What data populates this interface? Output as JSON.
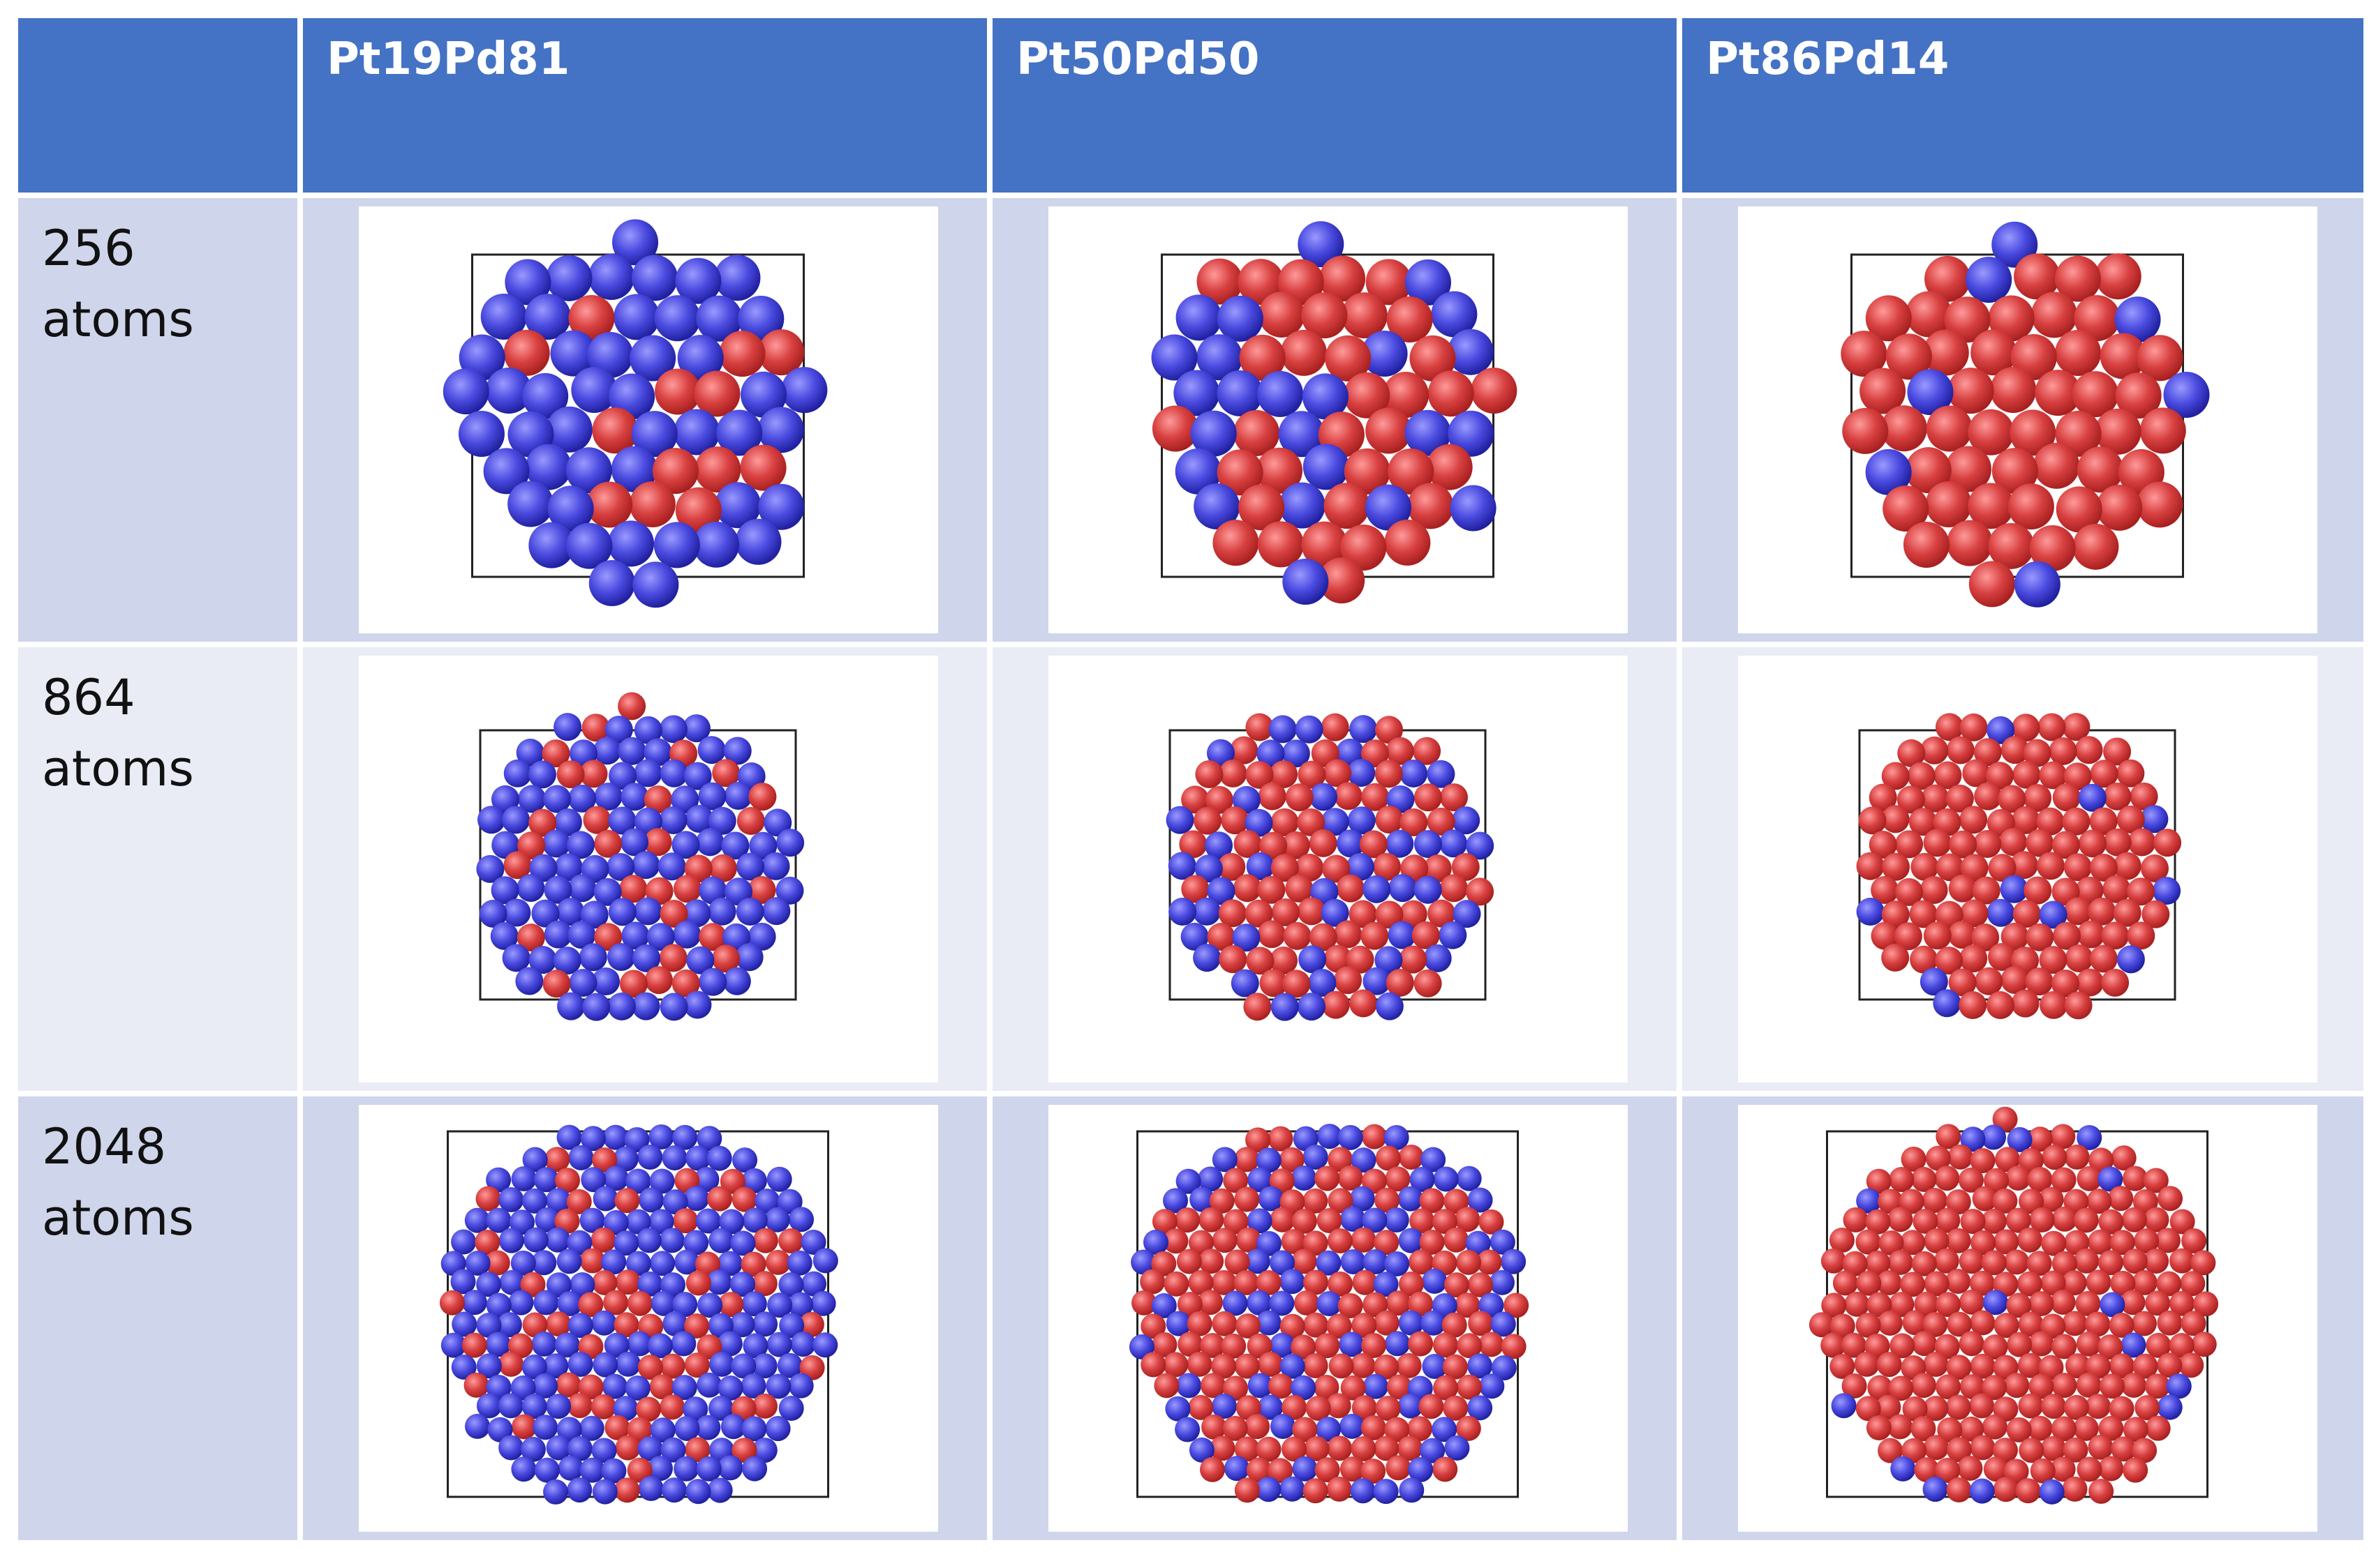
{
  "table": {
    "header": [
      "",
      "Pt19Pd81",
      "Pt50Pd50",
      "Pt86Pd14"
    ],
    "rows": [
      [
        "256 atoms"
      ],
      [
        "864 atoms"
      ],
      [
        "2048 atoms"
      ]
    ]
  }
}
